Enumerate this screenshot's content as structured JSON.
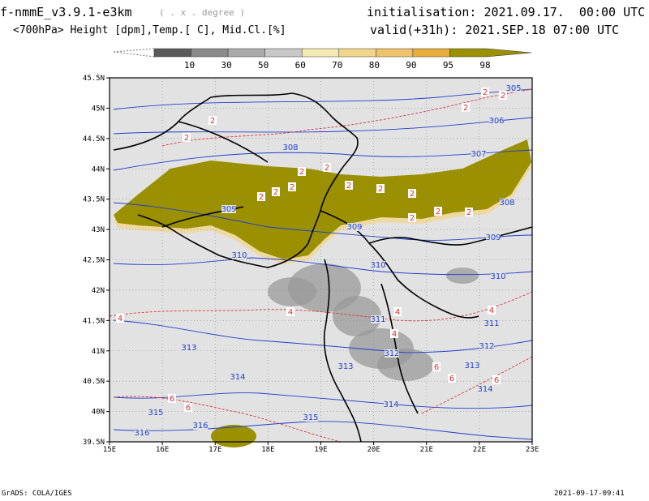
{
  "header": {
    "model": "f-nmmE_v3.9.1-e3km",
    "unit_note": "( . x . degree )",
    "init": "initialisation: 2021.09.17.  00:00 UTC",
    "fields": "<700hPa> Height [dpm],Temp.[ C], Mid.Cl.[%]",
    "valid": "valid(+31h): 2021.SEP.18 07:00 UTC"
  },
  "colorbar": {
    "labels": [
      "10",
      "30",
      "50",
      "60",
      "70",
      "80",
      "90",
      "95",
      "98"
    ],
    "colors": [
      "#5a5a5a",
      "#8a8a8a",
      "#aaaaaa",
      "#c8c8c8",
      "#f2eab0",
      "#f0d58a",
      "#eec36a",
      "#e8ad3a",
      "#9a9000"
    ]
  },
  "map": {
    "lon_labels": [
      "15E",
      "16E",
      "17E",
      "18E",
      "19E",
      "20E",
      "21E",
      "22E",
      "23E"
    ],
    "lat_labels": [
      "45.5N",
      "45N",
      "44.5N",
      "44N",
      "43.5N",
      "43N",
      "42.5N",
      "42N",
      "41.5N",
      "41N",
      "40.5N",
      "40N",
      "39.5N"
    ],
    "height_labels": [
      "305",
      "306",
      "307",
      "308",
      "308",
      "309",
      "309",
      "309",
      "310",
      "310",
      "311",
      "311",
      "312",
      "312",
      "313",
      "313",
      "313",
      "314",
      "314",
      "314",
      "315",
      "315",
      "316",
      "316",
      "310"
    ],
    "temp_labels": [
      "2",
      "2",
      "2",
      "2",
      "2",
      "2",
      "2",
      "2",
      "2",
      "2",
      "2",
      "2",
      "2",
      "2",
      "2",
      "2",
      "4",
      "4",
      "4",
      "4",
      "4",
      "6",
      "6",
      "6",
      "6",
      "6"
    ],
    "colors": {
      "land": "#e2e2e2",
      "heavy_cloud": "#9a9000",
      "height": "#1f3fd0",
      "temp": "#e03030",
      "coast": "#000000",
      "grid": "#888888"
    }
  },
  "footer": {
    "left": "GrADS: COLA/IGES",
    "right": "2021-09-17-09:41"
  }
}
